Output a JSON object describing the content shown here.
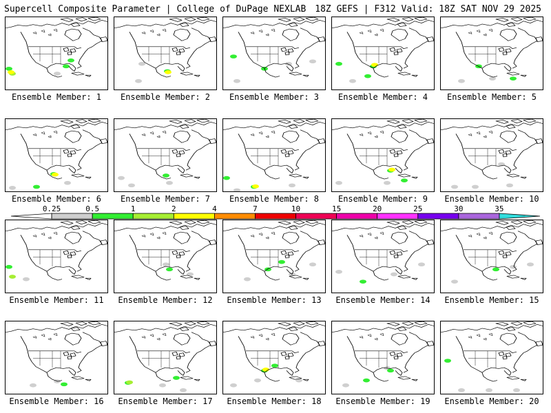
{
  "header": {
    "title": "Supercell Composite Parameter | College of DuPage NEXLAB",
    "run_info": "18Z GEFS | F312 Valid: 18Z SAT NOV 29 2025"
  },
  "colorbar": {
    "ticks": [
      "0.25",
      "0.5",
      "1",
      "2",
      "4",
      "7",
      "10",
      "15",
      "20",
      "25",
      "30",
      "35"
    ],
    "colors": [
      "#ffffff",
      "#cfcfcf",
      "#33ee33",
      "#a6ee33",
      "#ffff00",
      "#ff8c00",
      "#ee0000",
      "#ee0055",
      "#ee00aa",
      "#ff33ff",
      "#7700ee",
      "#aa66dd",
      "#33dddd"
    ]
  },
  "member_label_prefix": "Ensemble Member: ",
  "members": [
    {
      "number": "1",
      "blobs": [
        [
          5,
          105,
          "#33ee33"
        ],
        [
          10,
          115,
          "#a6ee33"
        ],
        [
          8,
          112,
          "#ffff00"
        ],
        [
          95,
          88,
          "#33ee33"
        ],
        [
          88,
          100,
          "#33ee33"
        ],
        [
          75,
          115,
          "#cfcfcf"
        ]
      ]
    },
    {
      "number": "2",
      "blobs": [
        [
          40,
          95,
          "#cfcfcf"
        ],
        [
          77,
          110,
          "#33ee33"
        ],
        [
          78,
          112,
          "#ffff00"
        ],
        [
          35,
          130,
          "#cfcfcf"
        ]
      ]
    },
    {
      "number": "3",
      "blobs": [
        [
          15,
          80,
          "#33ee33"
        ],
        [
          60,
          105,
          "#33ee33"
        ],
        [
          95,
          95,
          "#cfcfcf"
        ],
        [
          130,
          90,
          "#cfcfcf"
        ],
        [
          20,
          130,
          "#cfcfcf"
        ]
      ]
    },
    {
      "number": "4",
      "blobs": [
        [
          10,
          95,
          "#33ee33"
        ],
        [
          60,
          100,
          "#33ee33"
        ],
        [
          62,
          97,
          "#ffff00"
        ],
        [
          52,
          120,
          "#33ee33"
        ],
        [
          30,
          130,
          "#cfcfcf"
        ]
      ]
    },
    {
      "number": "5",
      "blobs": [
        [
          55,
          100,
          "#33ee33"
        ],
        [
          30,
          130,
          "#cfcfcf"
        ],
        [
          105,
          125,
          "#33ee33"
        ],
        [
          75,
          125,
          "#cfcfcf"
        ]
      ]
    },
    {
      "number": "6",
      "blobs": [
        [
          70,
          112,
          "#33ee33"
        ],
        [
          72,
          113,
          "#ffff00"
        ],
        [
          45,
          138,
          "#33ee33"
        ],
        [
          10,
          140,
          "#cfcfcf"
        ],
        [
          90,
          130,
          "#cfcfcf"
        ]
      ]
    },
    {
      "number": "7",
      "blobs": [
        [
          75,
          115,
          "#33ee33"
        ],
        [
          10,
          120,
          "#cfcfcf"
        ],
        [
          25,
          135,
          "#cfcfcf"
        ],
        [
          80,
          130,
          "#cfcfcf"
        ]
      ]
    },
    {
      "number": "8",
      "blobs": [
        [
          5,
          120,
          "#33ee33"
        ],
        [
          45,
          138,
          "#33ee33"
        ],
        [
          47,
          137,
          "#ffff00"
        ],
        [
          100,
          135,
          "#cfcfcf"
        ],
        [
          20,
          145,
          "#cfcfcf"
        ]
      ]
    },
    {
      "number": "9",
      "blobs": [
        [
          85,
          105,
          "#33ee33"
        ],
        [
          87,
          103,
          "#ffff00"
        ],
        [
          10,
          130,
          "#cfcfcf"
        ],
        [
          80,
          130,
          "#cfcfcf"
        ],
        [
          105,
          125,
          "#33ee33"
        ]
      ]
    },
    {
      "number": "10",
      "blobs": [
        [
          88,
          92,
          "#cfcfcf"
        ],
        [
          20,
          138,
          "#cfcfcf"
        ],
        [
          50,
          138,
          "#cfcfcf"
        ],
        [
          100,
          135,
          "#cfcfcf"
        ]
      ]
    },
    {
      "number": "11",
      "blobs": [
        [
          5,
          95,
          "#33ee33"
        ],
        [
          10,
          115,
          "#a6ee33"
        ],
        [
          30,
          120,
          "#cfcfcf"
        ]
      ]
    },
    {
      "number": "12",
      "blobs": [
        [
          80,
          100,
          "#33ee33"
        ],
        [
          75,
          90,
          "#cfcfcf"
        ],
        [
          110,
          110,
          "#cfcfcf"
        ]
      ]
    },
    {
      "number": "13",
      "blobs": [
        [
          65,
          100,
          "#33ee33"
        ],
        [
          85,
          85,
          "#33ee33"
        ],
        [
          35,
          120,
          "#cfcfcf"
        ],
        [
          100,
          110,
          "#cfcfcf"
        ],
        [
          130,
          90,
          "#cfcfcf"
        ]
      ]
    },
    {
      "number": "14",
      "blobs": [
        [
          45,
          125,
          "#33ee33"
        ],
        [
          90,
          110,
          "#cfcfcf"
        ],
        [
          10,
          105,
          "#cfcfcf"
        ],
        [
          130,
          90,
          "#cfcfcf"
        ]
      ]
    },
    {
      "number": "15",
      "blobs": [
        [
          80,
          100,
          "#33ee33"
        ],
        [
          105,
          95,
          "#cfcfcf"
        ],
        [
          20,
          125,
          "#cfcfcf"
        ],
        [
          130,
          90,
          "#cfcfcf"
        ]
      ]
    },
    {
      "number": "16",
      "blobs": [
        [
          85,
          128,
          "#33ee33"
        ],
        [
          40,
          130,
          "#cfcfcf"
        ],
        [
          75,
          122,
          "#cfcfcf"
        ]
      ]
    },
    {
      "number": "17",
      "blobs": [
        [
          20,
          125,
          "#33ee33"
        ],
        [
          22,
          124,
          "#a6ee33"
        ],
        [
          70,
          130,
          "#cfcfcf"
        ],
        [
          90,
          115,
          "#33ee33"
        ],
        [
          100,
          140,
          "#cfcfcf"
        ]
      ]
    },
    {
      "number": "18",
      "blobs": [
        [
          60,
          100,
          "#33ee33"
        ],
        [
          62,
          98,
          "#ffff00"
        ],
        [
          75,
          90,
          "#33ee33"
        ],
        [
          50,
          120,
          "#cfcfcf"
        ],
        [
          15,
          130,
          "#cfcfcf"
        ],
        [
          110,
          120,
          "#cfcfcf"
        ]
      ]
    },
    {
      "number": "19",
      "blobs": [
        [
          80,
          95,
          "#cfcfcf"
        ],
        [
          85,
          100,
          "#33ee33"
        ],
        [
          50,
          120,
          "#33ee33"
        ],
        [
          20,
          130,
          "#cfcfcf"
        ]
      ]
    },
    {
      "number": "20",
      "blobs": [
        [
          10,
          80,
          "#33ee33"
        ],
        [
          30,
          140,
          "#cfcfcf"
        ],
        [
          70,
          140,
          "#cfcfcf"
        ],
        [
          110,
          140,
          "#cfcfcf"
        ]
      ]
    }
  ]
}
